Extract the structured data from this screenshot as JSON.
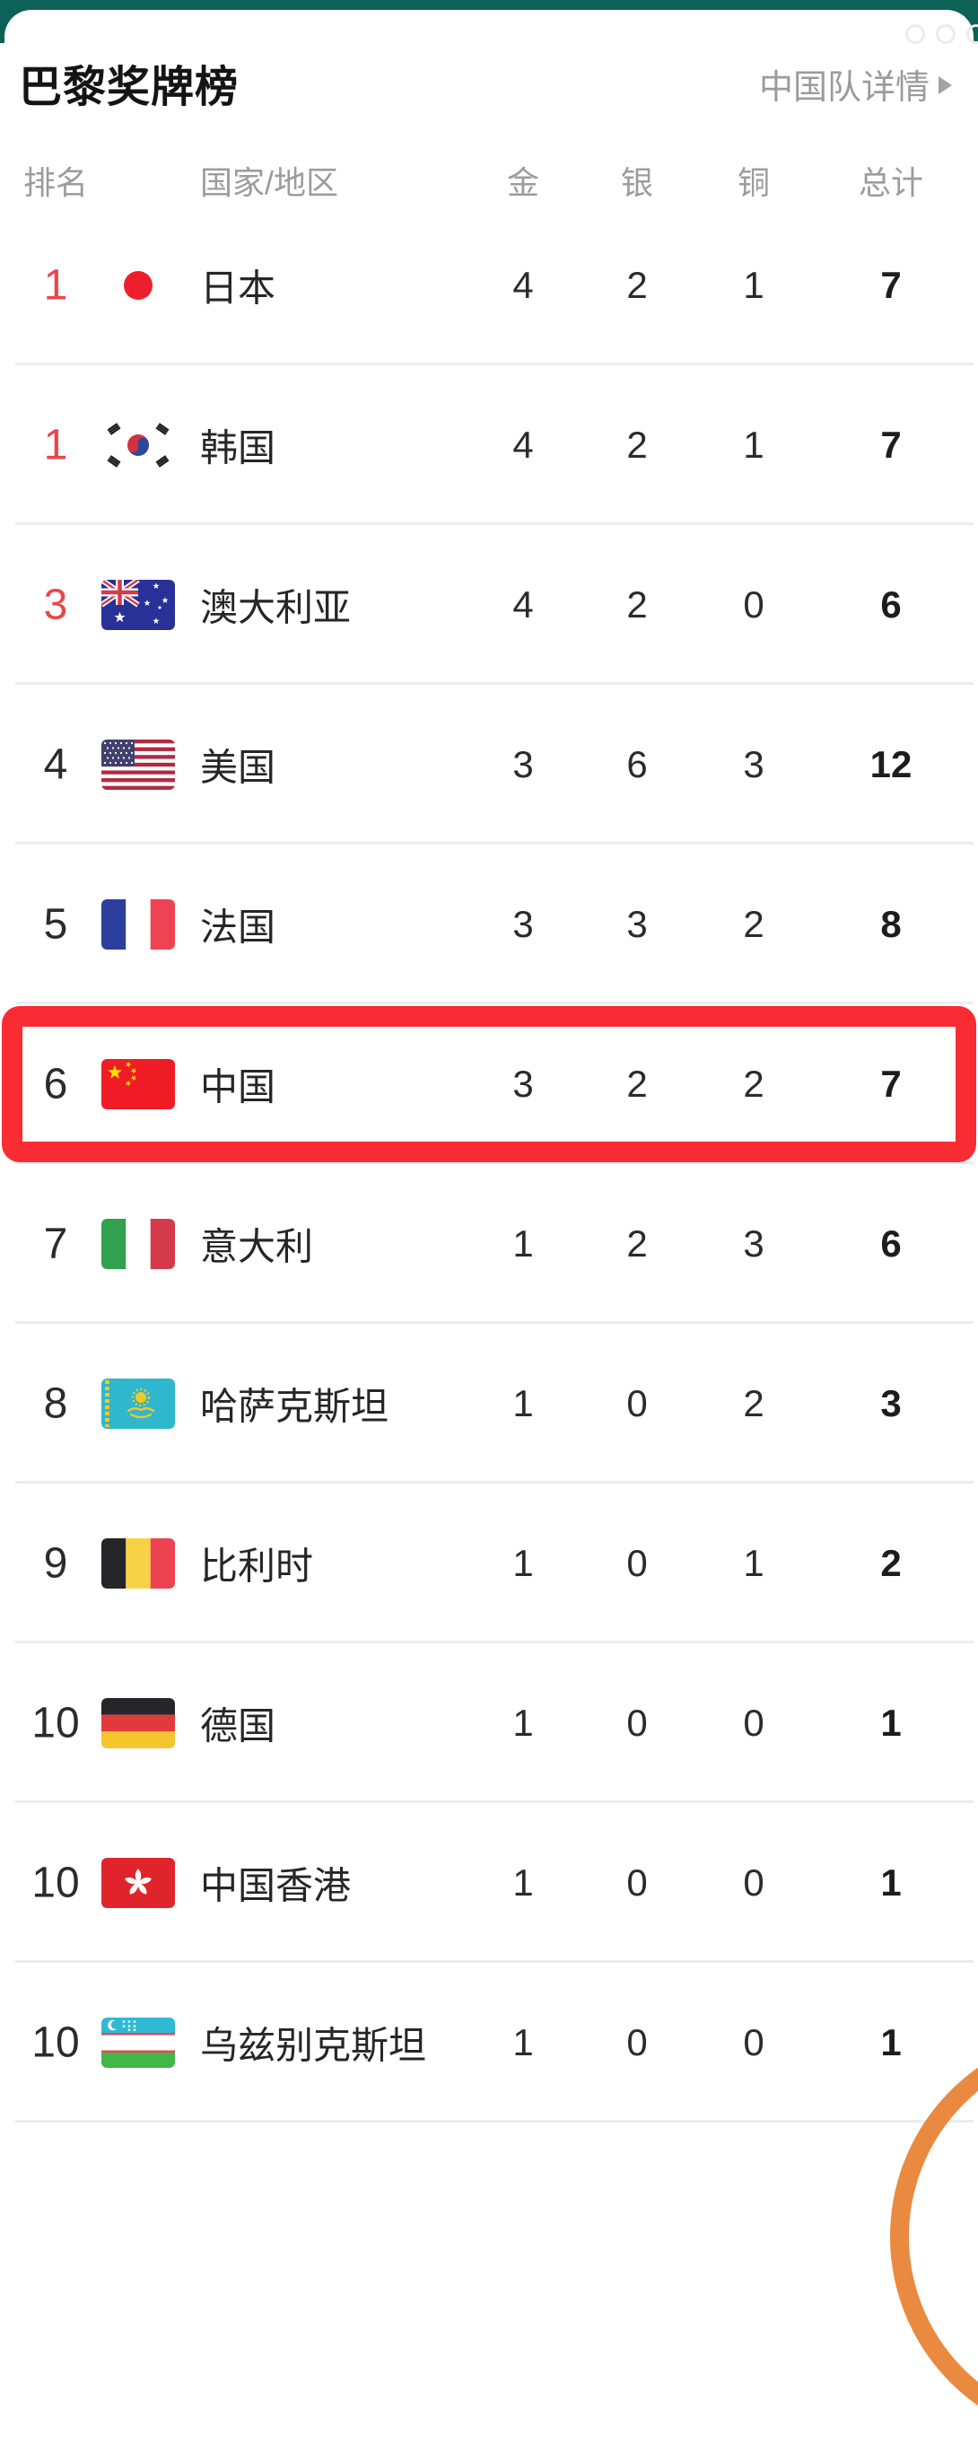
{
  "app": {
    "background_color": "#ffffff",
    "top_band_color": "#0d6156",
    "card_color": "#ffffff"
  },
  "header": {
    "title": "巴黎奖牌榜",
    "detail_link": "中国队详情",
    "arrow_icon": "chevron-right-icon"
  },
  "decorations": {
    "rings_icon": "three-rings-icon",
    "rings_color": "#ebebeb",
    "arc_icon": "orange-arc-icon",
    "arc_color": "#ea8a41"
  },
  "table": {
    "columns": {
      "rank": "排名",
      "country": "国家/地区",
      "gold": "金",
      "silver": "银",
      "bronze": "铜",
      "total": "总计"
    },
    "highlight_border_color": "#f92b33",
    "rank_top3_color": "#e9474b",
    "rows": [
      {
        "rank": "1",
        "country": "日本",
        "flag_icon": "flag-japan",
        "gold": "4",
        "silver": "2",
        "bronze": "1",
        "total": "7",
        "rank_red": true,
        "highlighted": false
      },
      {
        "rank": "1",
        "country": "韩国",
        "flag_icon": "flag-south-korea",
        "gold": "4",
        "silver": "2",
        "bronze": "1",
        "total": "7",
        "rank_red": true,
        "highlighted": false
      },
      {
        "rank": "3",
        "country": "澳大利亚",
        "flag_icon": "flag-australia",
        "gold": "4",
        "silver": "2",
        "bronze": "0",
        "total": "6",
        "rank_red": true,
        "highlighted": false
      },
      {
        "rank": "4",
        "country": "美国",
        "flag_icon": "flag-usa",
        "gold": "3",
        "silver": "6",
        "bronze": "3",
        "total": "12",
        "rank_red": false,
        "highlighted": false
      },
      {
        "rank": "5",
        "country": "法国",
        "flag_icon": "flag-france",
        "gold": "3",
        "silver": "3",
        "bronze": "2",
        "total": "8",
        "rank_red": false,
        "highlighted": false
      },
      {
        "rank": "6",
        "country": "中国",
        "flag_icon": "flag-china",
        "gold": "3",
        "silver": "2",
        "bronze": "2",
        "total": "7",
        "rank_red": false,
        "highlighted": true
      },
      {
        "rank": "7",
        "country": "意大利",
        "flag_icon": "flag-italy",
        "gold": "1",
        "silver": "2",
        "bronze": "3",
        "total": "6",
        "rank_red": false,
        "highlighted": false
      },
      {
        "rank": "8",
        "country": "哈萨克斯坦",
        "flag_icon": "flag-kazakhstan",
        "gold": "1",
        "silver": "0",
        "bronze": "2",
        "total": "3",
        "rank_red": false,
        "highlighted": false
      },
      {
        "rank": "9",
        "country": "比利时",
        "flag_icon": "flag-belgium",
        "gold": "1",
        "silver": "0",
        "bronze": "1",
        "total": "2",
        "rank_red": false,
        "highlighted": false
      },
      {
        "rank": "10",
        "country": "德国",
        "flag_icon": "flag-germany",
        "gold": "1",
        "silver": "0",
        "bronze": "0",
        "total": "1",
        "rank_red": false,
        "highlighted": false
      },
      {
        "rank": "10",
        "country": "中国香港",
        "flag_icon": "flag-hong-kong",
        "gold": "1",
        "silver": "0",
        "bronze": "0",
        "total": "1",
        "rank_red": false,
        "highlighted": false
      },
      {
        "rank": "10",
        "country": "乌兹别克斯坦",
        "flag_icon": "flag-uzbekistan",
        "gold": "1",
        "silver": "0",
        "bronze": "0",
        "total": "1",
        "rank_red": false,
        "highlighted": false
      }
    ]
  }
}
